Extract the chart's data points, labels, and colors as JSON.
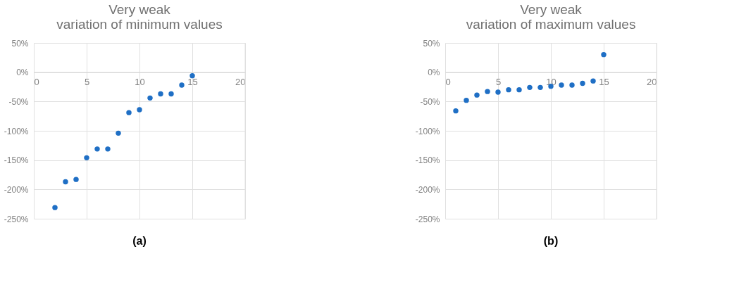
{
  "chart_data": [
    {
      "type": "scatter",
      "title": "Very weak\nvariation of minimum values",
      "marker": "circle",
      "grid": true,
      "x": [
        2,
        3,
        4,
        5,
        6,
        7,
        8,
        9,
        10,
        11,
        12,
        13,
        14,
        15
      ],
      "series": [
        {
          "color": "#1f6fc5",
          "values": [
            -231,
            -187,
            -183,
            -146,
            -131,
            -131,
            -104,
            -69,
            -64,
            -44,
            -37,
            -37,
            -22,
            -6
          ]
        }
      ],
      "xlim": [
        0,
        20
      ],
      "xticks": [
        0,
        5,
        10,
        15,
        20
      ],
      "ylim": [
        -250,
        50
      ],
      "yticks": [
        {
          "value": -250,
          "label": "-250%"
        },
        {
          "value": -200,
          "label": "-200%"
        },
        {
          "value": -150,
          "label": "-150%"
        },
        {
          "value": -100,
          "label": "-100%"
        },
        {
          "value": -50,
          "label": "-50%"
        },
        {
          "value": 0,
          "label": "0%"
        },
        {
          "value": 50,
          "label": "50%"
        }
      ],
      "annotations": [
        "(a)"
      ]
    },
    {
      "type": "scatter",
      "title": "Very weak\nvariation of maximum values",
      "marker": "circle",
      "grid": true,
      "x": [
        1,
        2,
        3,
        4,
        5,
        6,
        7,
        8,
        9,
        10,
        11,
        12,
        13,
        14,
        15
      ],
      "series": [
        {
          "color": "#1f6fc5",
          "values": [
            -66,
            -48,
            -39,
            -33,
            -34,
            -30,
            -30,
            -26,
            -26,
            -24,
            -22,
            -22,
            -19,
            -15,
            30
          ]
        }
      ],
      "xlim": [
        0,
        20
      ],
      "xticks": [
        0,
        5,
        10,
        15,
        20
      ],
      "ylim": [
        -250,
        50
      ],
      "yticks": [
        {
          "value": -250,
          "label": "-250%"
        },
        {
          "value": -200,
          "label": "-200%"
        },
        {
          "value": -150,
          "label": "-150%"
        },
        {
          "value": -100,
          "label": "-100%"
        },
        {
          "value": -50,
          "label": "-50%"
        },
        {
          "value": 0,
          "label": "0%"
        },
        {
          "value": 50,
          "label": "50%"
        }
      ],
      "annotations": [
        "(b)"
      ]
    }
  ]
}
